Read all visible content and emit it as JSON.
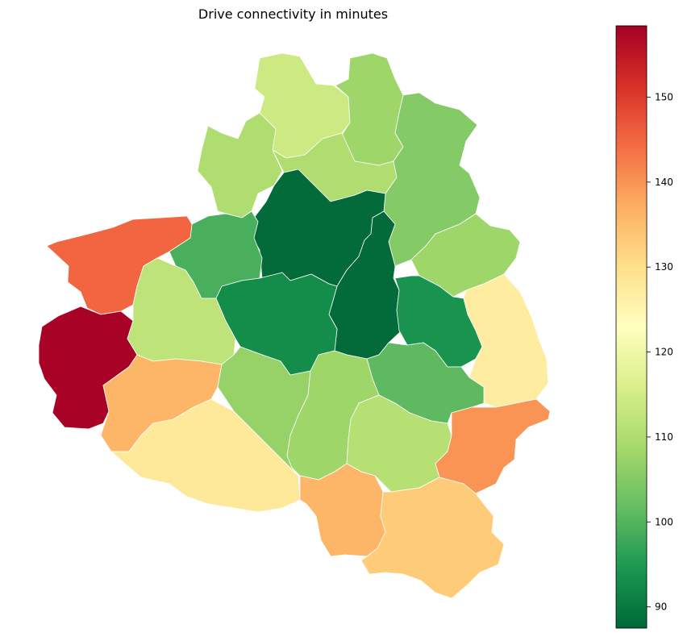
{
  "title": "Drive connectivity in minutes",
  "colorbar": {
    "min": 87.5,
    "max": 158.4,
    "ticks": [
      90,
      100,
      110,
      120,
      130,
      140,
      150
    ],
    "tick_labels": [
      "90",
      "100",
      "110",
      "120",
      "130",
      "140",
      "150"
    ],
    "colormap": "RdYlGn_r",
    "colormap_stops": [
      "#006837",
      "#1a9850",
      "#66bd63",
      "#a6d96a",
      "#d9ef8b",
      "#ffffbf",
      "#fee08b",
      "#fdae61",
      "#f46d43",
      "#d73027",
      "#a50026"
    ]
  },
  "chart_data": {
    "type": "choropleth",
    "title": "Drive connectivity in minutes",
    "value_range": [
      87.5,
      158.4
    ],
    "regions": [
      {
        "id": "north-top",
        "value": 114
      },
      {
        "id": "north-east-top",
        "value": 108
      },
      {
        "id": "north-west",
        "value": 110
      },
      {
        "id": "north-center",
        "value": 110
      },
      {
        "id": "north-east",
        "value": 105
      },
      {
        "id": "center-north",
        "value": 88
      },
      {
        "id": "center",
        "value": 88
      },
      {
        "id": "east-upper",
        "value": 108
      },
      {
        "id": "west-north-green",
        "value": 99
      },
      {
        "id": "west-northwest",
        "value": 145
      },
      {
        "id": "far-west",
        "value": 158
      },
      {
        "id": "west-center",
        "value": 112
      },
      {
        "id": "center-west",
        "value": 93
      },
      {
        "id": "east-center",
        "value": 94
      },
      {
        "id": "east",
        "value": 127
      },
      {
        "id": "south-center-east",
        "value": 101
      },
      {
        "id": "south-west-upper",
        "value": 136
      },
      {
        "id": "south-west-lower",
        "value": 128
      },
      {
        "id": "south-center-west",
        "value": 107
      },
      {
        "id": "south-center",
        "value": 108
      },
      {
        "id": "south-center-east-2",
        "value": 111
      },
      {
        "id": "south-east",
        "value": 140
      },
      {
        "id": "south",
        "value": 136
      },
      {
        "id": "south-south-east",
        "value": 133
      }
    ]
  }
}
